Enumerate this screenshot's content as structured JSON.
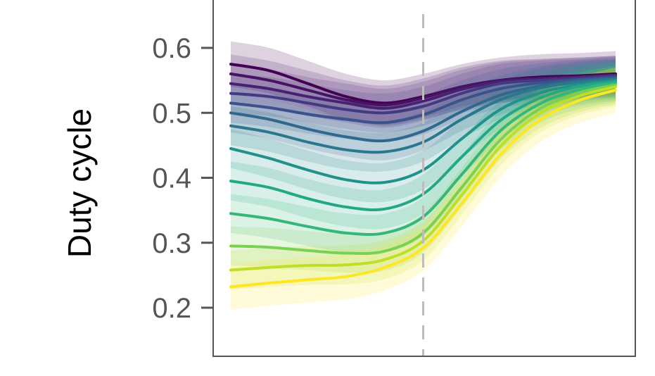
{
  "chart_data": {
    "type": "line",
    "ylabel": "Duty cycle",
    "ylim": [
      0.16,
      0.66
    ],
    "xlim": [
      0,
      1
    ],
    "y_ticks": [
      0.2,
      0.3,
      0.4,
      0.5,
      0.6
    ],
    "y_tick_labels": [
      "0.2",
      "0.3",
      "0.4",
      "0.5",
      "0.6"
    ],
    "vline": {
      "x": 0.5,
      "style": "dashed",
      "color": "#bdbdbd"
    },
    "grid": false,
    "legend": "none",
    "frame_color": "#555555",
    "band_opacity": 0.35,
    "x": [
      0.0,
      0.1,
      0.2,
      0.3,
      0.4,
      0.5,
      0.6,
      0.7,
      0.8,
      0.9,
      1.0
    ],
    "series": [
      {
        "color": "#440154",
        "values": [
          0.575,
          0.565,
          0.545,
          0.525,
          0.515,
          0.525,
          0.54,
          0.55,
          0.555,
          0.557,
          0.56
        ],
        "band": 0.035
      },
      {
        "color": "#471365",
        "values": [
          0.56,
          0.55,
          0.535,
          0.52,
          0.512,
          0.523,
          0.54,
          0.55,
          0.553,
          0.555,
          0.558
        ],
        "band": 0.03
      },
      {
        "color": "#482173",
        "values": [
          0.545,
          0.537,
          0.525,
          0.515,
          0.507,
          0.518,
          0.536,
          0.548,
          0.552,
          0.555,
          0.558
        ],
        "band": 0.03
      },
      {
        "color": "#443a83",
        "values": [
          0.53,
          0.525,
          0.515,
          0.505,
          0.5,
          0.51,
          0.53,
          0.545,
          0.55,
          0.553,
          0.557
        ],
        "band": 0.03
      },
      {
        "color": "#3b528b",
        "values": [
          0.515,
          0.508,
          0.498,
          0.49,
          0.485,
          0.497,
          0.52,
          0.537,
          0.546,
          0.551,
          0.555
        ],
        "band": 0.03
      },
      {
        "color": "#31688e",
        "values": [
          0.5,
          0.49,
          0.475,
          0.463,
          0.457,
          0.472,
          0.502,
          0.527,
          0.541,
          0.549,
          0.553
        ],
        "band": 0.03
      },
      {
        "color": "#2a788e",
        "values": [
          0.48,
          0.47,
          0.455,
          0.443,
          0.44,
          0.455,
          0.49,
          0.52,
          0.538,
          0.547,
          0.552
        ],
        "band": 0.03
      },
      {
        "color": "#21918c",
        "values": [
          0.445,
          0.43,
          0.412,
          0.397,
          0.393,
          0.412,
          0.46,
          0.505,
          0.53,
          0.543,
          0.55
        ],
        "band": 0.03
      },
      {
        "color": "#22a884",
        "values": [
          0.395,
          0.385,
          0.368,
          0.355,
          0.352,
          0.375,
          0.432,
          0.488,
          0.522,
          0.54,
          0.548
        ],
        "band": 0.03
      },
      {
        "color": "#35b779",
        "values": [
          0.345,
          0.337,
          0.325,
          0.315,
          0.315,
          0.34,
          0.405,
          0.472,
          0.513,
          0.535,
          0.546
        ],
        "band": 0.03
      },
      {
        "color": "#7ad151",
        "values": [
          0.295,
          0.293,
          0.288,
          0.284,
          0.287,
          0.315,
          0.385,
          0.458,
          0.505,
          0.53,
          0.543
        ],
        "band": 0.03
      },
      {
        "color": "#bddf26",
        "values": [
          0.258,
          0.262,
          0.265,
          0.266,
          0.274,
          0.303,
          0.373,
          0.448,
          0.498,
          0.525,
          0.54
        ],
        "band": 0.03
      },
      {
        "color": "#fde725",
        "values": [
          0.232,
          0.238,
          0.243,
          0.248,
          0.262,
          0.292,
          0.36,
          0.435,
          0.488,
          0.518,
          0.535
        ],
        "band": 0.035
      }
    ]
  }
}
